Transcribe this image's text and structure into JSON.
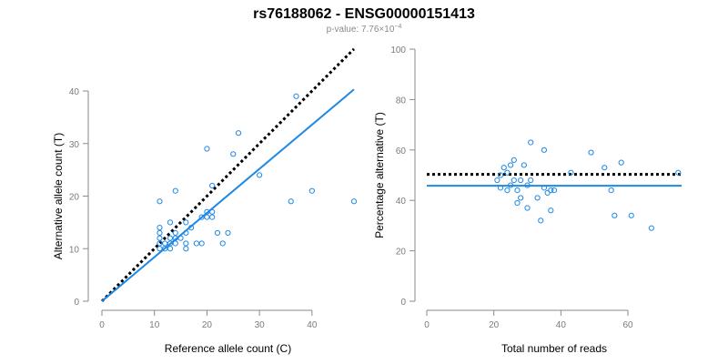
{
  "header": {
    "title": "rs76188062 - ENSG00000151413",
    "subtitle_prefix": "p-value: 7.76×10",
    "subtitle_exp": "−4"
  },
  "chart_data": [
    {
      "type": "scatter",
      "xlabel": "Reference allele count (C)",
      "ylabel": "Alternative allele count (T)",
      "xlim": [
        0,
        48
      ],
      "ylim": [
        0,
        40
      ],
      "xticks": [
        0,
        10,
        20,
        30,
        40
      ],
      "yticks": [
        0,
        10,
        20,
        30,
        40
      ],
      "points": [
        [
          11,
          10
        ],
        [
          11,
          11
        ],
        [
          11,
          12
        ],
        [
          11,
          13
        ],
        [
          11,
          14
        ],
        [
          11,
          19
        ],
        [
          12,
          10
        ],
        [
          12,
          11
        ],
        [
          13,
          10
        ],
        [
          13,
          11
        ],
        [
          13,
          12
        ],
        [
          13,
          15
        ],
        [
          14,
          11
        ],
        [
          14,
          12
        ],
        [
          14,
          13
        ],
        [
          14,
          21
        ],
        [
          15,
          12
        ],
        [
          16,
          10
        ],
        [
          16,
          11
        ],
        [
          16,
          13
        ],
        [
          16,
          15
        ],
        [
          17,
          14
        ],
        [
          18,
          11
        ],
        [
          19,
          11
        ],
        [
          19,
          16
        ],
        [
          20,
          16
        ],
        [
          20,
          17
        ],
        [
          20,
          29
        ],
        [
          21,
          16
        ],
        [
          21,
          17
        ],
        [
          21,
          22
        ],
        [
          22,
          13
        ],
        [
          23,
          11
        ],
        [
          24,
          13
        ],
        [
          25,
          28
        ],
        [
          26,
          32
        ],
        [
          30,
          24
        ],
        [
          36,
          19
        ],
        [
          37,
          39
        ],
        [
          40,
          21
        ],
        [
          48,
          19
        ]
      ],
      "lines": [
        {
          "style": "dotted",
          "color": "#000000",
          "from": [
            0,
            0
          ],
          "to": [
            48,
            48
          ]
        },
        {
          "style": "solid",
          "color": "#1e88e5",
          "from": [
            0,
            0
          ],
          "to": [
            48,
            40.3
          ]
        }
      ],
      "grid": false
    },
    {
      "type": "scatter",
      "xlabel": "Total number of reads",
      "ylabel": "Percentage alternative (T)",
      "xlim": [
        0,
        76
      ],
      "ylim": [
        0,
        100
      ],
      "xticks": [
        0,
        20,
        40,
        60
      ],
      "yticks": [
        0,
        20,
        40,
        60,
        80,
        100
      ],
      "points": [
        [
          21,
          48
        ],
        [
          22,
          50
        ],
        [
          22,
          45
        ],
        [
          23,
          53
        ],
        [
          24,
          44
        ],
        [
          24,
          51
        ],
        [
          25,
          54
        ],
        [
          25,
          46
        ],
        [
          26,
          56
        ],
        [
          26,
          48
        ],
        [
          27,
          44
        ],
        [
          27,
          39
        ],
        [
          28,
          41
        ],
        [
          28,
          48
        ],
        [
          29,
          54
        ],
        [
          30,
          46
        ],
        [
          30,
          37
        ],
        [
          31,
          63
        ],
        [
          31,
          48
        ],
        [
          33,
          41
        ],
        [
          34,
          32
        ],
        [
          35,
          45
        ],
        [
          35,
          60
        ],
        [
          36,
          43
        ],
        [
          37,
          36
        ],
        [
          37,
          44
        ],
        [
          38,
          44
        ],
        [
          43,
          51
        ],
        [
          49,
          59
        ],
        [
          53,
          53
        ],
        [
          55,
          44
        ],
        [
          56,
          34
        ],
        [
          58,
          55
        ],
        [
          61,
          34
        ],
        [
          67,
          29
        ],
        [
          75,
          51
        ]
      ],
      "lines": [
        {
          "style": "dotted",
          "color": "#000000",
          "from": [
            0,
            50.3
          ],
          "to": [
            76,
            50.3
          ]
        },
        {
          "style": "solid",
          "color": "#1e88e5",
          "from": [
            0,
            45.8
          ],
          "to": [
            76,
            45.8
          ]
        }
      ],
      "grid": false
    }
  ],
  "colors": {
    "points": "#1e88e5",
    "fit_line": "#1e88e5",
    "reference_line": "#000000",
    "axis": "#8a8a8a",
    "tick_label": "#7a7a7a"
  }
}
